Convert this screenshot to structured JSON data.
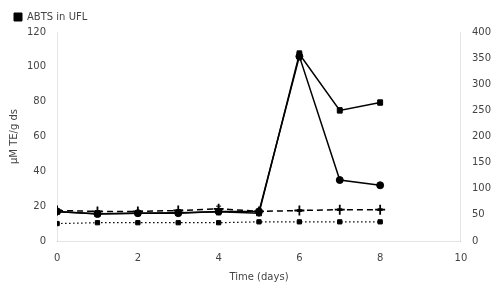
{
  "chart_data": {
    "type": "line",
    "x": [
      0,
      1,
      2,
      3,
      4,
      5,
      6,
      7,
      8
    ],
    "xlabel": "Time (days)",
    "ylabel": "μM TE/g ds",
    "xlim": [
      0,
      10
    ],
    "xticks": [
      0,
      2,
      4,
      6,
      8,
      10
    ],
    "ylim": [
      0,
      120
    ],
    "yticks": [
      0,
      20,
      40,
      60,
      80,
      100,
      120
    ],
    "y2lim": [
      0,
      400
    ],
    "y2ticks": [
      0,
      50,
      100,
      150,
      200,
      250,
      300,
      350,
      400
    ],
    "grid": false,
    "legend": "upper left",
    "series": [
      {
        "axis": "y2",
        "color": "#000000",
        "marker": "square",
        "line_style": "solid",
        "values": [
          56.0,
          52.0,
          53.0,
          54.0,
          56.0,
          53.0,
          358.0,
          250.0,
          265.0
        ],
        "errors": [
          2.0,
          2.0,
          2.0,
          2.0,
          6.0,
          2.0,
          6.0,
          5.0,
          5.0
        ]
      },
      {
        "color": "#000000",
        "marker": "circle",
        "line_style": "solid",
        "values": [
          17.0,
          15.5,
          16.0,
          16.0,
          17.0,
          17.0,
          106.0,
          35.0,
          32.0
        ],
        "errors": [
          0.5,
          0.5,
          0.5,
          0.5,
          0.5,
          0.5,
          2.0,
          1.0,
          1.0
        ]
      },
      {
        "color": "#000000",
        "marker": "plus",
        "line_style": "dashed",
        "values": [
          17.5,
          17.0,
          17.0,
          17.5,
          18.5,
          17.0,
          17.5,
          18.0,
          18.0
        ],
        "errors": [
          0.5,
          0.5,
          0.5,
          0.5,
          1.5,
          0.5,
          0.5,
          0.5,
          0.5
        ]
      },
      {
        "name": "ABTS in UFL",
        "color": "#000000",
        "marker": "square",
        "line_style": "dotted",
        "values": [
          10.0,
          10.5,
          10.5,
          10.5,
          10.5,
          11.0,
          11.0,
          11.0,
          11.0
        ],
        "errors": [
          0.3,
          0.3,
          0.3,
          0.3,
          0.3,
          0.3,
          0.3,
          0.3,
          0.3
        ]
      }
    ]
  }
}
